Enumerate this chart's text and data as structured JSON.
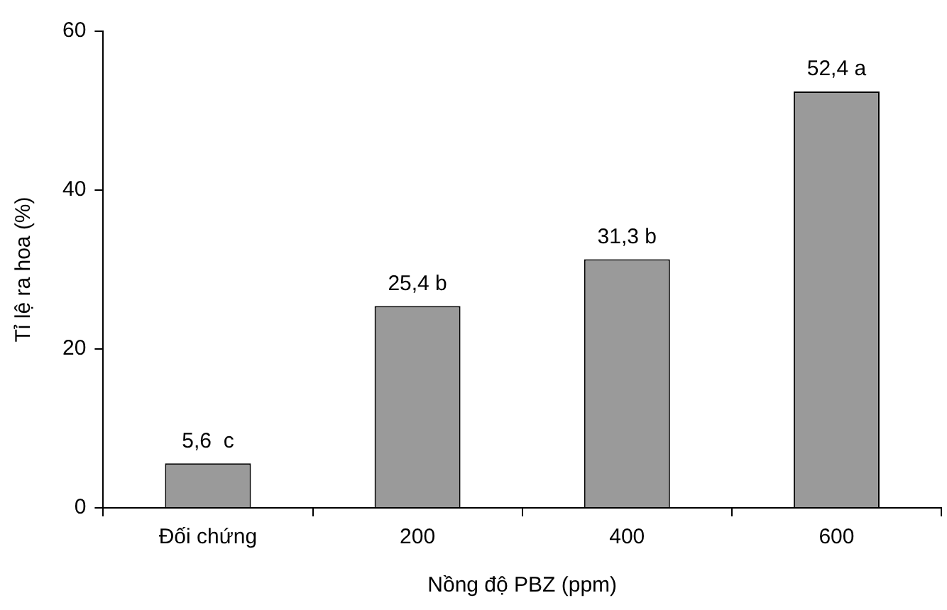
{
  "chart_data": {
    "type": "bar",
    "xlabel": "Nồng độ PBZ (ppm)",
    "ylabel": "Tỉ lệ ra hoa (%)",
    "categories": [
      "Đối chứng",
      "200",
      "400",
      "600"
    ],
    "values": [
      5.6,
      25.4,
      31.3,
      52.4
    ],
    "value_labels": [
      "5,6  c",
      "25,4 b",
      "31,3 b",
      "52,4 a"
    ],
    "color": "#9a9a9a",
    "ylim": [
      0,
      60
    ],
    "yticks": [
      0,
      20,
      40,
      60
    ],
    "grid": false,
    "legend": false
  }
}
